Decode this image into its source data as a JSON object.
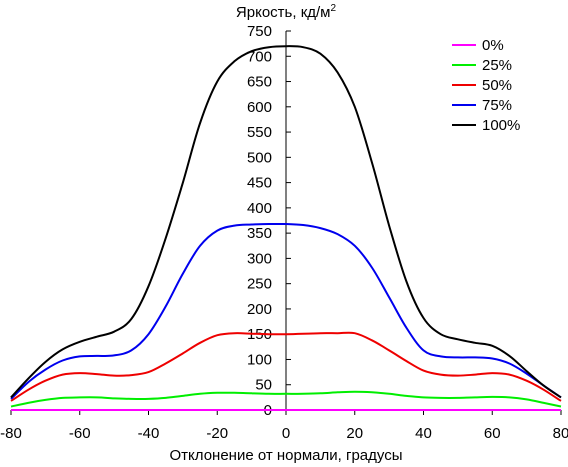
{
  "chart_data": {
    "type": "line",
    "title": "Яркость, кд/м",
    "title_sup": "2",
    "xlabel": "Отклонение от нормали, градусы",
    "ylabel": "",
    "xlim": [
      -80,
      80
    ],
    "ylim": [
      0,
      750
    ],
    "xticks": [
      -80,
      -60,
      -40,
      -20,
      0,
      20,
      40,
      60,
      80
    ],
    "yticks": [
      0,
      50,
      100,
      150,
      200,
      250,
      300,
      350,
      400,
      450,
      500,
      550,
      600,
      650,
      700,
      750
    ],
    "grid": false,
    "legend_position": "top-right",
    "x": [
      -80,
      -75,
      -70,
      -65,
      -60,
      -55,
      -50,
      -45,
      -40,
      -35,
      -30,
      -25,
      -20,
      -15,
      -10,
      -5,
      0,
      5,
      10,
      15,
      20,
      25,
      30,
      35,
      40,
      45,
      50,
      55,
      60,
      65,
      70,
      75,
      80
    ],
    "series": [
      {
        "name": "0%",
        "color": "#ff00ff",
        "values": [
          0,
          0,
          0,
          0,
          0,
          0,
          0,
          0,
          0,
          0,
          0,
          0,
          0,
          0,
          0,
          0,
          0,
          0,
          0,
          0,
          0,
          0,
          0,
          0,
          0,
          0,
          0,
          0,
          0,
          0,
          0,
          0,
          0
        ]
      },
      {
        "name": "25%",
        "color": "#00ee00",
        "values": [
          7,
          14,
          20,
          24,
          25,
          25,
          23,
          22,
          22,
          24,
          28,
          32,
          34,
          34,
          33,
          32,
          32,
          32,
          33,
          35,
          36,
          35,
          32,
          28,
          25,
          24,
          24,
          25,
          26,
          25,
          21,
          14,
          7
        ]
      },
      {
        "name": "50%",
        "color": "#ee0000",
        "values": [
          18,
          40,
          58,
          70,
          73,
          71,
          68,
          69,
          75,
          92,
          112,
          133,
          148,
          152,
          151,
          150,
          150,
          151,
          152,
          152,
          152,
          138,
          118,
          97,
          78,
          70,
          68,
          70,
          73,
          70,
          58,
          40,
          18
        ]
      },
      {
        "name": "75%",
        "color": "#0000ee",
        "values": [
          22,
          55,
          80,
          98,
          106,
          107,
          108,
          118,
          150,
          205,
          270,
          325,
          355,
          365,
          367,
          368,
          368,
          366,
          360,
          348,
          325,
          282,
          223,
          163,
          118,
          106,
          104,
          104,
          102,
          92,
          72,
          48,
          25
        ]
      },
      {
        "name": "100%",
        "color": "#000000",
        "values": [
          25,
          62,
          95,
          120,
          135,
          145,
          155,
          180,
          245,
          340,
          450,
          568,
          650,
          690,
          710,
          718,
          720,
          718,
          705,
          668,
          600,
          490,
          365,
          255,
          182,
          150,
          140,
          133,
          127,
          107,
          77,
          48,
          25
        ]
      }
    ]
  }
}
